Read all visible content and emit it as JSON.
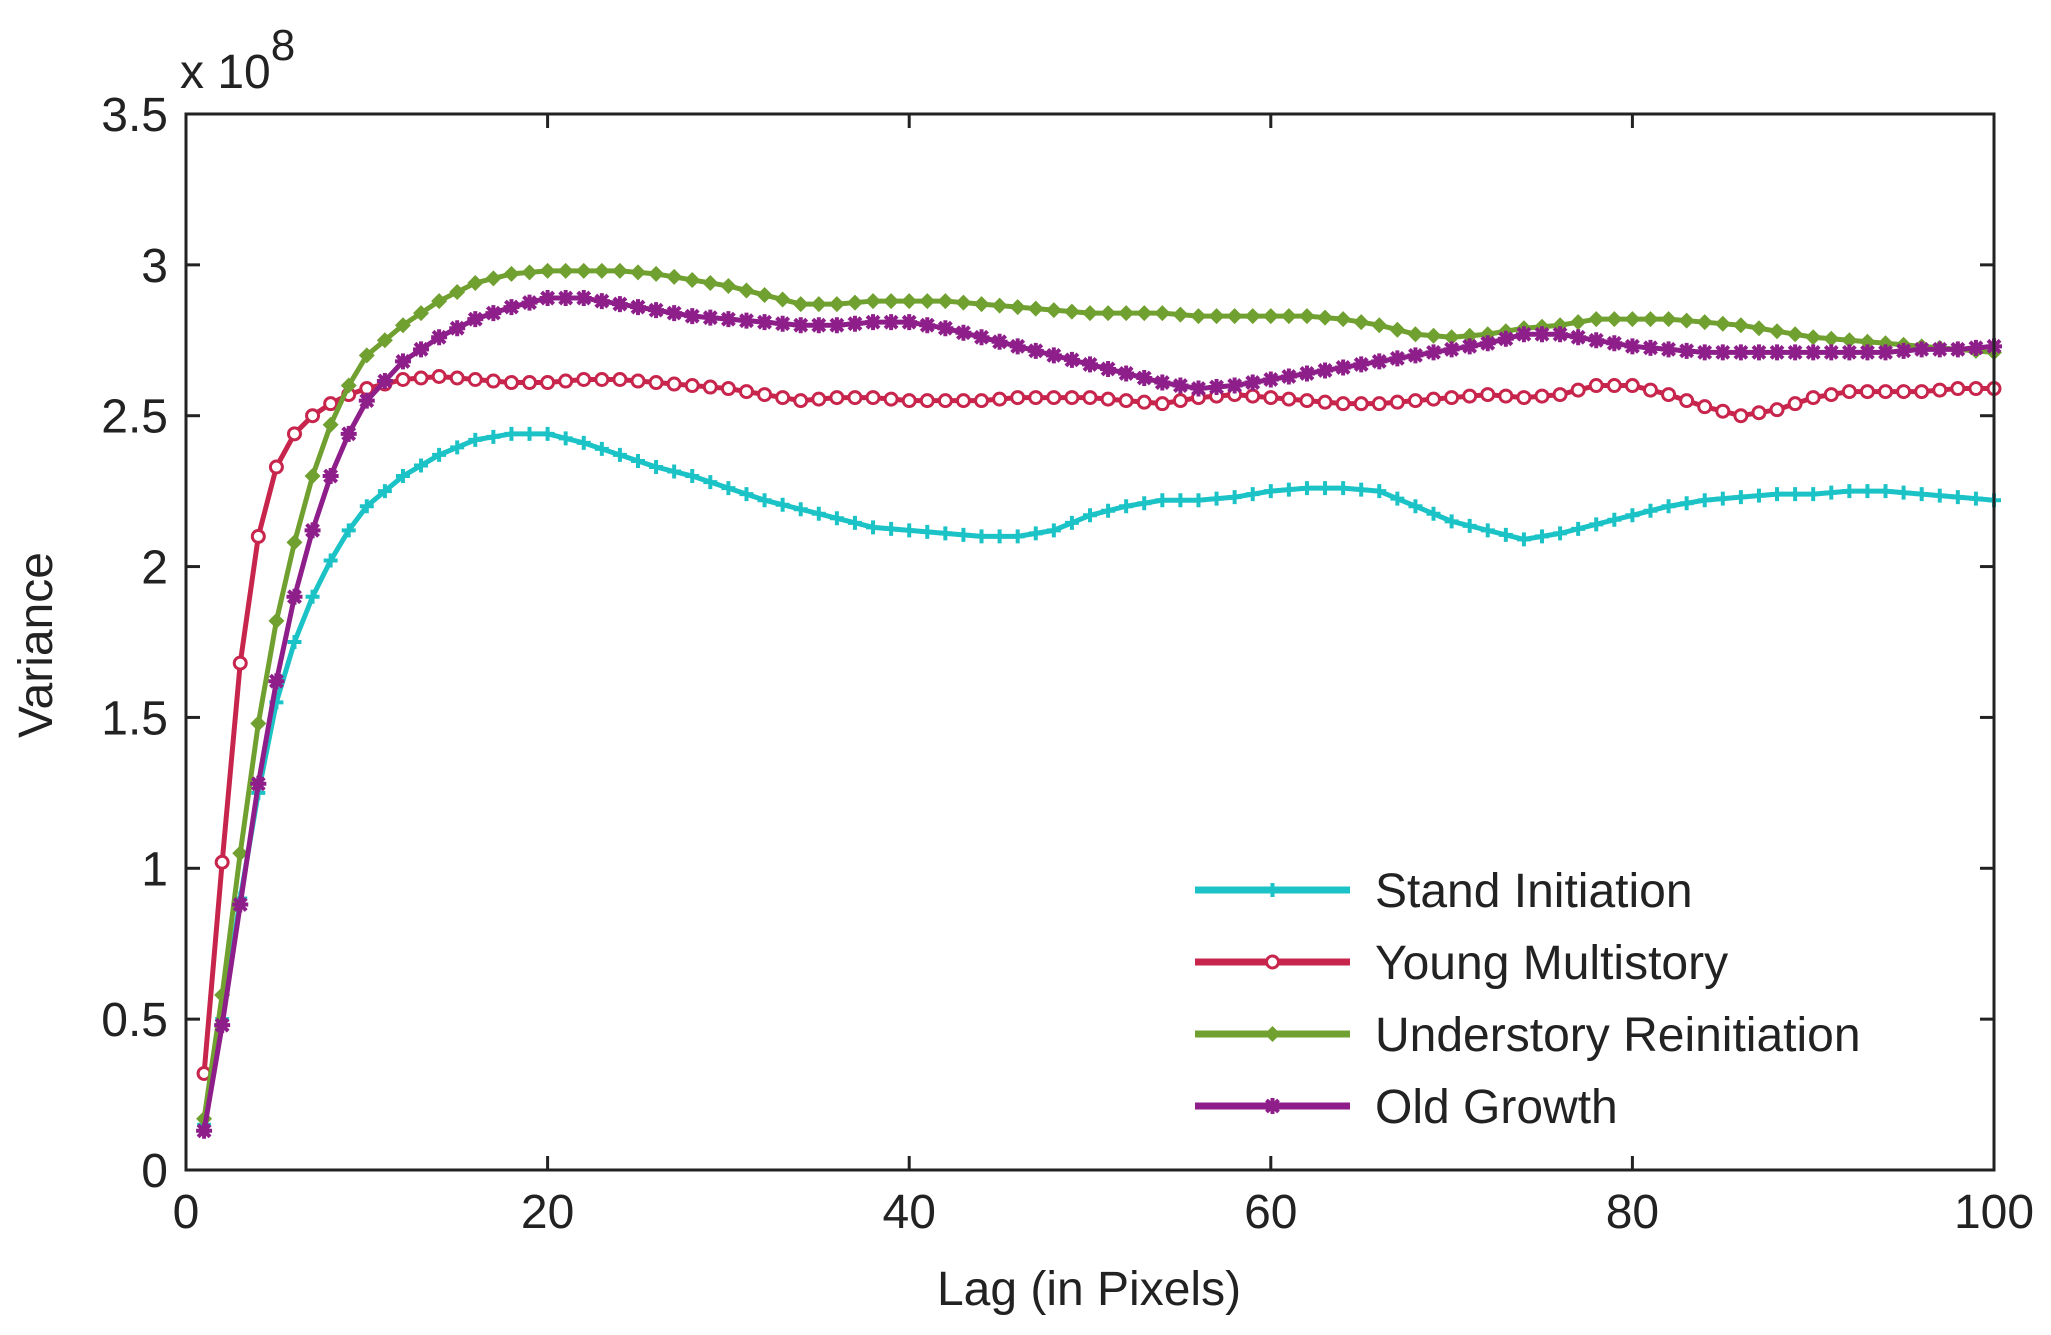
{
  "chart_data": {
    "type": "line",
    "xlabel": "Lag (in Pixels)",
    "ylabel": "Variance",
    "y_multiplier_base": "x 10",
    "y_multiplier_exponent": "8",
    "xlim": [
      0,
      100
    ],
    "ylim": [
      0,
      3.5
    ],
    "xticks": [
      0,
      20,
      40,
      60,
      80,
      100
    ],
    "xtick_labels": [
      "0",
      "20",
      "40",
      "60",
      "80",
      "100"
    ],
    "yticks": [
      0,
      0.5,
      1,
      1.5,
      2,
      2.5,
      3,
      3.5
    ],
    "ytick_labels": [
      "0",
      "0.5",
      "1",
      "1.5",
      "2",
      "2.5",
      "3",
      "3.5"
    ],
    "grid": false,
    "legend_position": "bottom-right",
    "x": [
      1,
      2,
      3,
      4,
      5,
      6,
      7,
      8,
      9,
      10,
      12,
      14,
      16,
      18,
      20,
      22,
      24,
      26,
      28,
      30,
      32,
      34,
      36,
      38,
      40,
      42,
      44,
      46,
      48,
      50,
      52,
      54,
      56,
      58,
      60,
      62,
      64,
      66,
      68,
      70,
      72,
      74,
      76,
      78,
      80,
      82,
      84,
      86,
      88,
      90,
      92,
      94,
      96,
      98,
      100
    ],
    "series": [
      {
        "name": "Stand Initiation",
        "color": "#1cc3c6",
        "marker": "plus",
        "values": [
          0.15,
          0.5,
          0.9,
          1.25,
          1.55,
          1.75,
          1.9,
          2.02,
          2.12,
          2.2,
          2.3,
          2.37,
          2.42,
          2.44,
          2.44,
          2.41,
          2.37,
          2.33,
          2.3,
          2.26,
          2.22,
          2.19,
          2.16,
          2.13,
          2.12,
          2.11,
          2.1,
          2.1,
          2.12,
          2.17,
          2.2,
          2.22,
          2.22,
          2.23,
          2.25,
          2.26,
          2.26,
          2.25,
          2.2,
          2.15,
          2.12,
          2.09,
          2.11,
          2.14,
          2.17,
          2.2,
          2.22,
          2.23,
          2.24,
          2.24,
          2.25,
          2.25,
          2.24,
          2.23,
          2.22
        ]
      },
      {
        "name": "Young Multistory",
        "color": "#c8254d",
        "marker": "circle",
        "values": [
          0.32,
          1.02,
          1.68,
          2.1,
          2.33,
          2.44,
          2.5,
          2.54,
          2.57,
          2.59,
          2.62,
          2.63,
          2.62,
          2.61,
          2.61,
          2.62,
          2.62,
          2.61,
          2.6,
          2.59,
          2.57,
          2.55,
          2.56,
          2.56,
          2.55,
          2.55,
          2.55,
          2.56,
          2.56,
          2.56,
          2.55,
          2.54,
          2.56,
          2.57,
          2.56,
          2.55,
          2.54,
          2.54,
          2.55,
          2.56,
          2.57,
          2.56,
          2.57,
          2.6,
          2.6,
          2.57,
          2.53,
          2.5,
          2.52,
          2.56,
          2.58,
          2.58,
          2.58,
          2.59,
          2.59
        ]
      },
      {
        "name": "Understory Reinitiation",
        "color": "#70a030",
        "marker": "diamond",
        "values": [
          0.17,
          0.58,
          1.05,
          1.48,
          1.82,
          2.08,
          2.3,
          2.47,
          2.6,
          2.7,
          2.8,
          2.88,
          2.94,
          2.97,
          2.98,
          2.98,
          2.98,
          2.97,
          2.95,
          2.93,
          2.9,
          2.87,
          2.87,
          2.88,
          2.88,
          2.88,
          2.87,
          2.86,
          2.85,
          2.84,
          2.84,
          2.84,
          2.83,
          2.83,
          2.83,
          2.83,
          2.82,
          2.8,
          2.77,
          2.76,
          2.77,
          2.79,
          2.8,
          2.82,
          2.82,
          2.82,
          2.81,
          2.8,
          2.78,
          2.76,
          2.75,
          2.74,
          2.73,
          2.72,
          2.71
        ]
      },
      {
        "name": "Old Growth",
        "color": "#8e1e8a",
        "marker": "star",
        "values": [
          0.13,
          0.48,
          0.88,
          1.28,
          1.62,
          1.9,
          2.12,
          2.3,
          2.44,
          2.55,
          2.68,
          2.76,
          2.82,
          2.86,
          2.89,
          2.89,
          2.87,
          2.85,
          2.83,
          2.82,
          2.81,
          2.8,
          2.8,
          2.81,
          2.81,
          2.79,
          2.76,
          2.73,
          2.7,
          2.67,
          2.64,
          2.61,
          2.59,
          2.6,
          2.62,
          2.64,
          2.66,
          2.68,
          2.7,
          2.72,
          2.74,
          2.77,
          2.77,
          2.75,
          2.73,
          2.72,
          2.71,
          2.71,
          2.71,
          2.71,
          2.71,
          2.71,
          2.72,
          2.72,
          2.73
        ]
      }
    ]
  }
}
